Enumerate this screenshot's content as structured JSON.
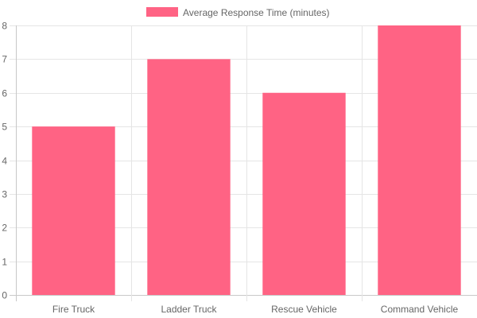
{
  "chart_data": {
    "type": "bar",
    "categories": [
      "Fire Truck",
      "Ladder Truck",
      "Rescue Vehicle",
      "Command Vehicle"
    ],
    "series": [
      {
        "name": "Average Response Time (minutes)",
        "values": [
          5,
          7,
          6,
          8
        ]
      }
    ],
    "ylim": [
      0,
      8
    ],
    "yticks": [
      "0",
      "1",
      "2",
      "3",
      "4",
      "5",
      "6",
      "7",
      "8"
    ],
    "grid": true,
    "legend_position": "top",
    "colors": {
      "bar_fill": "#ff6384",
      "grid": "#e5e5e5",
      "axis": "#c8c8c8",
      "text": "#666666"
    }
  }
}
